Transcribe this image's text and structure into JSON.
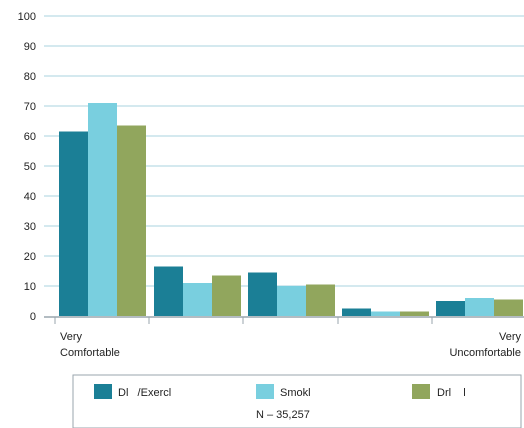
{
  "chart_data": {
    "type": "bar",
    "title": "",
    "xlabel": "",
    "ylabel": "",
    "ylim": [
      0,
      100
    ],
    "yticks": [
      0,
      10,
      20,
      30,
      40,
      50,
      60,
      70,
      80,
      90,
      100
    ],
    "grid": true,
    "categories": [
      {
        "line1": "Very",
        "line2": "Comfortable"
      },
      {
        "line1": "",
        "line2": ""
      },
      {
        "line1": "",
        "line2": ""
      },
      {
        "line1": "",
        "line2": ""
      },
      {
        "line1": "Very",
        "line2": "Uncomfortable"
      }
    ],
    "series": [
      {
        "name": "Dl   /Exercl",
        "color": "#1b7f96",
        "values": [
          61.5,
          16.5,
          14.5,
          2.5,
          5.0
        ]
      },
      {
        "name": "Smokl",
        "color": "#79cfdf",
        "values": [
          71,
          11,
          10,
          1.5,
          6.0
        ]
      },
      {
        "name": "Drl    l",
        "color": "#91a65d",
        "values": [
          63.5,
          13.5,
          10.5,
          1.5,
          5.5
        ]
      }
    ],
    "legend_position": "bottom",
    "note": "N – 35,257"
  },
  "colors": {
    "grid": "#a9d3df",
    "axis": "#9aa6ae",
    "legend_border": "#9aa6ae"
  }
}
